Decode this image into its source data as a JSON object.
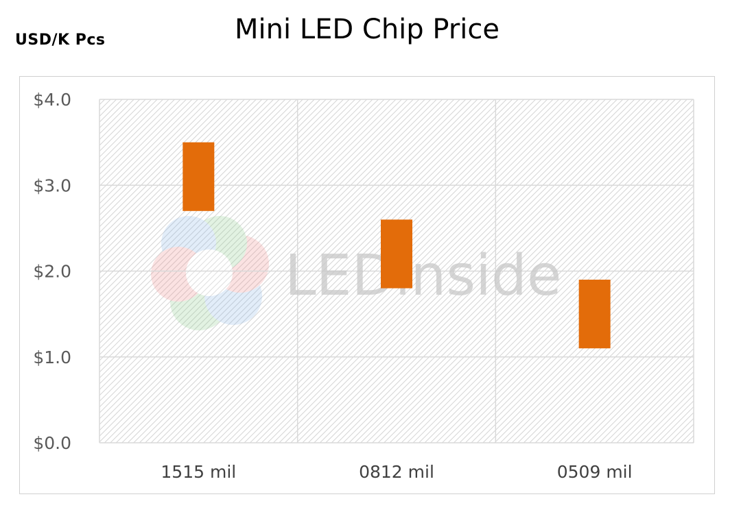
{
  "chart_data": {
    "type": "bar",
    "title": "Mini LED Chip Price",
    "ylabel": "USD/K Pcs",
    "xlabel": "",
    "categories": [
      "1515 mil",
      "0812 mil",
      "0509 mil"
    ],
    "series": [
      {
        "low": [
          2.7,
          1.8,
          1.1
        ],
        "high": [
          3.5,
          2.6,
          1.9
        ]
      }
    ],
    "ylim": [
      0,
      4
    ],
    "yticks": [
      0,
      1,
      2,
      3,
      4
    ],
    "ytick_labels": [
      "$0.0",
      "$1.0",
      "$2.0",
      "$3.0",
      "$4.0"
    ],
    "grid": true,
    "bar_color": "#e36c0a",
    "watermark": "LEDinside"
  }
}
